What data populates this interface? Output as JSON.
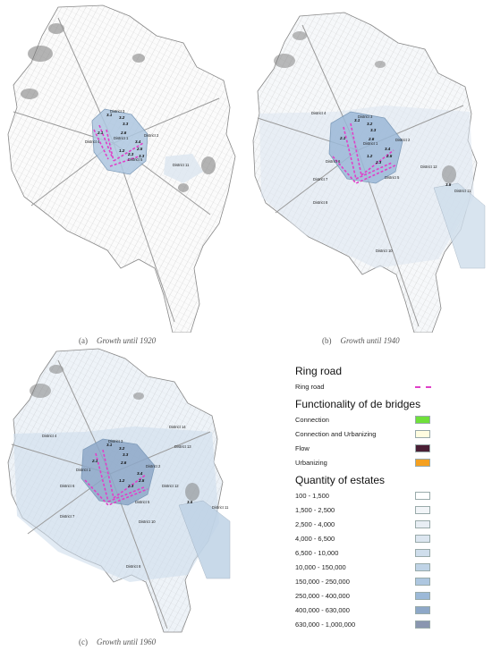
{
  "panels": [
    {
      "id": "a",
      "caption_letter": "(a)",
      "caption_text": "Growth until 1920",
      "districts": [
        "District 3",
        "District 1",
        "District 2",
        "District 5",
        "District 4",
        "District 11"
      ],
      "numbers": [
        "3.1",
        "3.2",
        "3.3",
        "2.1",
        "2.6",
        "3.4",
        "2.5",
        "1.2",
        "3.3",
        "2.3"
      ]
    },
    {
      "id": "b",
      "caption_letter": "(b)",
      "caption_text": "Growth until 1940",
      "districts": [
        "District 3",
        "District 4",
        "District 1",
        "District 2",
        "District 5",
        "District 12",
        "District 6",
        "District 11",
        "District 7",
        "District 8",
        "District 10"
      ],
      "numbers": [
        "3.1",
        "3.2",
        "3.3",
        "2.1",
        "2.6",
        "3.4",
        "2.5",
        "1.2",
        "2.3",
        "3.5"
      ]
    },
    {
      "id": "c",
      "caption_letter": "(c)",
      "caption_text": "Growth until 1960",
      "districts": [
        "District 4",
        "District 3",
        "District 14",
        "District 13",
        "District 1",
        "District 2",
        "District 5",
        "District 6",
        "District 12",
        "District 11",
        "District 7",
        "District 10",
        "District 8"
      ],
      "numbers": [
        "3.1",
        "3.2",
        "3.3",
        "2.1",
        "2.6",
        "3.4",
        "2.5",
        "1.2",
        "2.3",
        "3.5"
      ]
    }
  ],
  "legend": {
    "ring_title": "Ring road",
    "ring_item": "Ring road",
    "ring_color": "#e040c8",
    "func_title": "Functionality of de bridges",
    "func_items": [
      {
        "label": "Connection",
        "color": "#6fe03a"
      },
      {
        "label": "Connection and Urbanizing",
        "color": "#fffde0"
      },
      {
        "label": "Flow",
        "color": "#4a1f35"
      },
      {
        "label": "Urbanizing",
        "color": "#f5a020"
      }
    ],
    "qty_title": "Quantity of estates",
    "qty_items": [
      {
        "label": "100 - 1,500",
        "color": "#ffffff"
      },
      {
        "label": "1,500 - 2,500",
        "color": "#f2f5f8"
      },
      {
        "label": "2,500 - 4,000",
        "color": "#e8eef4"
      },
      {
        "label": "4,000 - 6,500",
        "color": "#dce6f0"
      },
      {
        "label": "6,500 - 10,000",
        "color": "#cfdeec"
      },
      {
        "label": "10,000 - 150,000",
        "color": "#bfd3e6"
      },
      {
        "label": "150,000 - 250,000",
        "color": "#aec7e0"
      },
      {
        "label": "250,000 - 400,000",
        "color": "#9cb9d8"
      },
      {
        "label": "400,000 - 630,000",
        "color": "#8ea8c8"
      },
      {
        "label": "630,000 - 1,000,000",
        "color": "#8a96b0"
      }
    ]
  }
}
